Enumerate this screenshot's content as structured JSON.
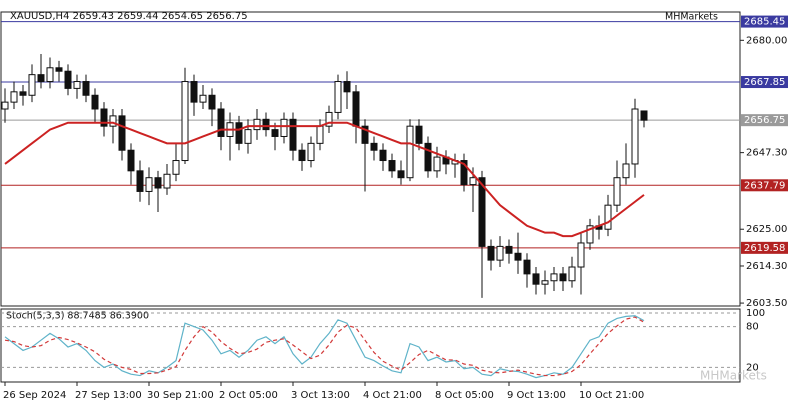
{
  "chart_data": {
    "type": "candlestick",
    "title": "XAUUSD,H4  2659.43 2659.44 2654.65 2656.75",
    "broker": "MHMarkets",
    "watermark": "MHMarkets",
    "categories": [
      "26 Sep 2024",
      null,
      null,
      null,
      null,
      null,
      null,
      null,
      "27 Sep 13:00",
      null,
      null,
      null,
      null,
      null,
      null,
      null,
      "30 Sep 21:00",
      null,
      null,
      null,
      null,
      null,
      null,
      null,
      "2 Oct 05:00",
      null,
      null,
      null,
      null,
      null,
      null,
      null,
      "3 Oct 13:00",
      null,
      null,
      null,
      null,
      null,
      null,
      null,
      "4 Oct 21:00",
      null,
      null,
      null,
      null,
      null,
      null,
      null,
      "8 Oct 05:00",
      null,
      null,
      null,
      null,
      null,
      null,
      null,
      "9 Oct 13:00",
      null,
      null,
      null,
      null,
      null,
      null,
      null,
      "10 Oct 21:00",
      null,
      null,
      null,
      null,
      null,
      null,
      null
    ],
    "open": [
      2660,
      2662,
      2665,
      2664,
      2670,
      2668,
      2672,
      2671,
      2666,
      2668,
      2664,
      2660,
      2655,
      2658,
      2648,
      2642,
      2636,
      2640,
      2637,
      2641,
      2645,
      2668,
      2662,
      2664,
      2660,
      2652,
      2656,
      2650,
      2654,
      2657,
      2654,
      2652,
      2657,
      2648,
      2645,
      2650,
      2655,
      2659,
      2668,
      2665,
      2655,
      2650,
      2648,
      2645,
      2642,
      2640,
      2655,
      2650,
      2642,
      2646,
      2644,
      2645,
      2638,
      2640,
      2620,
      2616,
      2620,
      2618,
      2616,
      2612,
      2609,
      2610,
      2612,
      2610,
      2614,
      2621,
      2626,
      2625,
      2632,
      2640,
      2644,
      2659.43
    ],
    "high": [
      2666,
      2668,
      2667,
      2673,
      2676,
      2675,
      2674,
      2673,
      2670,
      2670,
      2666,
      2662,
      2660,
      2660,
      2650,
      2645,
      2643,
      2642,
      2644,
      2650,
      2672,
      2670,
      2667,
      2666,
      2662,
      2659,
      2658,
      2657,
      2660,
      2659,
      2656,
      2659,
      2659,
      2650,
      2652,
      2657,
      2661,
      2670,
      2671,
      2667,
      2657,
      2652,
      2650,
      2647,
      2645,
      2657,
      2657,
      2652,
      2649,
      2648,
      2647,
      2647,
      2643,
      2642,
      2622,
      2623,
      2622,
      2624,
      2618,
      2614,
      2613,
      2614,
      2614,
      2617,
      2624,
      2628,
      2629,
      2635,
      2645,
      2650,
      2663,
      2659.44
    ],
    "low": [
      2656,
      2660,
      2661,
      2662,
      2666,
      2666,
      2668,
      2664,
      2663,
      2662,
      2656,
      2652,
      2650,
      2645,
      2638,
      2633,
      2632,
      2630,
      2635,
      2639,
      2644,
      2658,
      2660,
      2655,
      2648,
      2645,
      2648,
      2647,
      2651,
      2652,
      2648,
      2650,
      2645,
      2642,
      2643,
      2648,
      2653,
      2657,
      2660,
      2650,
      2636,
      2645,
      2642,
      2640,
      2638,
      2639,
      2648,
      2640,
      2640,
      2641,
      2640,
      2636,
      2630,
      2605,
      2613,
      2614,
      2615,
      2612,
      2608,
      2606,
      2606,
      2607,
      2607,
      2608,
      2606,
      2619,
      2622,
      2623,
      2630,
      2638,
      2640,
      2654.65
    ],
    "close": [
      2662,
      2665,
      2664,
      2670,
      2668,
      2672,
      2671,
      2666,
      2668,
      2664,
      2660,
      2655,
      2658,
      2648,
      2642,
      2636,
      2640,
      2637,
      2641,
      2645,
      2668,
      2662,
      2664,
      2660,
      2652,
      2656,
      2650,
      2654,
      2657,
      2654,
      2652,
      2657,
      2648,
      2645,
      2650,
      2655,
      2659,
      2668,
      2665,
      2655,
      2650,
      2648,
      2645,
      2642,
      2640,
      2655,
      2650,
      2642,
      2646,
      2644,
      2645,
      2638,
      2640,
      2620,
      2616,
      2620,
      2618,
      2616,
      2612,
      2609,
      2610,
      2612,
      2610,
      2614,
      2621,
      2626,
      2625,
      2632,
      2640,
      2644,
      2660,
      2656.75
    ],
    "ma": {
      "color": "#cc2222",
      "values": [
        2644,
        2646,
        2648,
        2650,
        2652,
        2654,
        2655,
        2656,
        2656,
        2656,
        2656,
        2656,
        2656,
        2655,
        2654,
        2653,
        2652,
        2651,
        2650,
        2650,
        2650,
        2651,
        2652,
        2653,
        2654,
        2654,
        2654,
        2655,
        2655,
        2655,
        2655,
        2655,
        2655,
        2655,
        2655,
        2655,
        2656,
        2656,
        2656,
        2655,
        2654,
        2653,
        2652,
        2651,
        2650,
        2650,
        2649,
        2648,
        2647,
        2646,
        2645,
        2644,
        2641,
        2638,
        2635,
        2632,
        2630,
        2628,
        2626,
        2625,
        2624,
        2624,
        2623,
        2623,
        2624,
        2625,
        2626,
        2627,
        2629,
        2631,
        2633,
        2635
      ]
    },
    "ylim": [
      2602.65,
      2688.24
    ],
    "yticks": [
      {
        "value": 2680,
        "label": "2680.00"
      },
      {
        "value": 2647.3,
        "label": "2647.30"
      },
      {
        "value": 2625,
        "label": "2625.00"
      },
      {
        "value": 2614.3,
        "label": "2614.30"
      },
      {
        "value": 2603.5,
        "label": "2603.50"
      }
    ],
    "price_lines": [
      {
        "value": 2685.45,
        "color": "#3a3aa0"
      },
      {
        "value": 2667.85,
        "color": "#3a3aa0"
      },
      {
        "value": 2656.75,
        "color": "#9a9a9a"
      },
      {
        "value": 2637.79,
        "color": "#b22222"
      },
      {
        "value": 2619.58,
        "color": "#b22222"
      }
    ],
    "stochastic": {
      "title": "Stoch(5,3,3) 88.7485 86.3900",
      "ylim": [
        0,
        100
      ],
      "yticks": [
        100,
        80,
        20
      ],
      "series": [
        {
          "color": "#5fb3c9",
          "dashed": false,
          "values": [
            65,
            55,
            45,
            50,
            60,
            70,
            62,
            50,
            55,
            45,
            30,
            20,
            25,
            15,
            10,
            8,
            15,
            12,
            20,
            30,
            85,
            80,
            75,
            60,
            40,
            45,
            35,
            45,
            60,
            65,
            55,
            65,
            40,
            25,
            35,
            55,
            70,
            90,
            85,
            60,
            35,
            30,
            22,
            15,
            12,
            55,
            50,
            30,
            35,
            28,
            30,
            18,
            20,
            10,
            8,
            18,
            15,
            14,
            10,
            5,
            8,
            12,
            10,
            20,
            40,
            60,
            65,
            85,
            92,
            95,
            96,
            88.7485
          ]
        },
        {
          "color": "#d23a3a",
          "dashed": true,
          "values": [
            60,
            58,
            52,
            50,
            52,
            60,
            64,
            61,
            56,
            50,
            43,
            32,
            25,
            20,
            17,
            11,
            11,
            12,
            16,
            21,
            45,
            65,
            80,
            72,
            58,
            48,
            40,
            42,
            47,
            57,
            60,
            62,
            53,
            43,
            33,
            38,
            53,
            72,
            82,
            78,
            60,
            42,
            29,
            22,
            16,
            27,
            39,
            45,
            38,
            31,
            31,
            25,
            23,
            16,
            13,
            12,
            14,
            16,
            13,
            10,
            8,
            8,
            10,
            14,
            24,
            40,
            55,
            70,
            81,
            91,
            94,
            86.39
          ]
        }
      ]
    }
  }
}
